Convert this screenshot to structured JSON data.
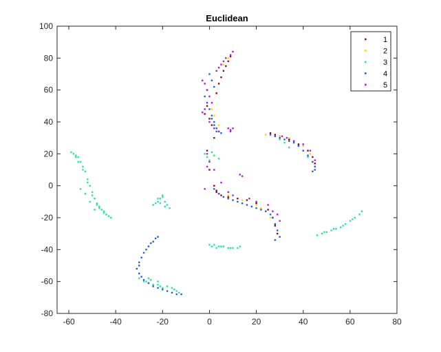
{
  "chart_data": {
    "type": "scatter",
    "title": "Euclidean",
    "xlabel": "",
    "ylabel": "",
    "xlim": [
      -65,
      80
    ],
    "ylim": [
      -80,
      100
    ],
    "xticks": [
      -60,
      -40,
      -20,
      0,
      20,
      40,
      60,
      80
    ],
    "yticks": [
      -80,
      -60,
      -40,
      -20,
      0,
      20,
      40,
      60,
      80,
      100
    ],
    "grid": false,
    "legend_position": "top-right",
    "series": [
      {
        "name": "1",
        "color": "#8b0a1a",
        "x": [
          3,
          4,
          5,
          6,
          7,
          8,
          9,
          -1,
          -2,
          0,
          1,
          2,
          3,
          -1,
          0,
          2,
          3,
          4,
          5,
          8,
          12,
          16,
          20,
          25,
          27,
          28,
          29,
          26,
          28,
          30,
          34,
          38,
          42,
          44,
          45
        ],
        "y": [
          58,
          64,
          68,
          72,
          75,
          78,
          81,
          50,
          45,
          42,
          38,
          30,
          -4,
          22,
          10,
          0,
          -3,
          -5,
          -6,
          -7,
          -8,
          -9,
          -11,
          -15,
          -20,
          -25,
          -30,
          33,
          32,
          31,
          29,
          26,
          22,
          18,
          14
        ]
      },
      {
        "name": "2",
        "color": "#ffd700",
        "x": [
          6,
          8,
          10,
          1,
          2,
          4,
          8,
          14,
          20,
          22,
          26,
          24,
          30,
          34,
          36,
          40,
          43,
          45
        ],
        "y": [
          76,
          80,
          84,
          48,
          44,
          38,
          -6,
          -9,
          -12,
          -14,
          -20,
          32,
          31,
          30,
          28,
          25,
          20,
          12
        ]
      },
      {
        "name": "3",
        "color": "#1ee8a0",
        "x": [
          -59,
          -58,
          -57,
          -56,
          -55,
          -54,
          -53,
          -52,
          -51,
          -50,
          -49,
          -48,
          -47,
          -46,
          -45,
          -44,
          -43,
          -42,
          -56,
          -57,
          -54,
          -52,
          -50,
          -48,
          -47,
          -45,
          -55,
          -53,
          -51,
          -49,
          -24,
          -23,
          -22,
          -21,
          -20,
          -19,
          -18,
          -17,
          -22,
          -20,
          -19,
          -21,
          -30,
          -28,
          -26,
          -24,
          -22,
          -21,
          -20,
          -18,
          -16,
          -15,
          -14,
          -13,
          -26,
          -27,
          -25,
          -22,
          0,
          2,
          4,
          6,
          8,
          10,
          12,
          13,
          1,
          3,
          5,
          9,
          46,
          48,
          50,
          52,
          54,
          56,
          58,
          60,
          62,
          64,
          65,
          49,
          53,
          57,
          61,
          -2,
          -1,
          0,
          1,
          2,
          4,
          36,
          38,
          40,
          42,
          44,
          30,
          32,
          34
        ],
        "y": [
          21,
          20,
          19,
          18,
          15,
          12,
          9,
          4,
          0,
          -4,
          -8,
          -11,
          -13,
          -15,
          -16,
          -18,
          -19,
          -20,
          15,
          18,
          10,
          2,
          -6,
          -12,
          -14,
          -17,
          -2,
          -5,
          -10,
          -15,
          -12,
          -11,
          -10,
          -8,
          -6,
          -10,
          -12,
          -14,
          -8,
          -7,
          -13,
          -11,
          -58,
          -60,
          -61,
          -62,
          -62,
          -63,
          -64,
          -63,
          -64,
          -65,
          -66,
          -67,
          -58,
          -60,
          -59,
          -60,
          -37,
          -37,
          -38,
          -38,
          -39,
          -39,
          -39,
          -38,
          -38,
          -39,
          -38,
          -39,
          -31,
          -30,
          -29,
          -28,
          -27,
          -26,
          -24,
          -22,
          -20,
          -18,
          -16,
          -29,
          -27,
          -25,
          -21,
          20,
          18,
          16,
          21,
          19,
          17,
          28,
          25,
          22,
          18,
          15,
          29,
          27,
          24
        ]
      },
      {
        "name": "4",
        "color": "#1a5ee0",
        "x": [
          -30,
          -29,
          -28,
          -27,
          -26,
          -25,
          -24,
          -23,
          -22,
          -30,
          -31,
          -30,
          -29,
          -28,
          -26,
          -24,
          -22,
          -20,
          -18,
          -16,
          -14,
          -12,
          -1,
          0,
          1,
          2,
          3,
          2,
          1,
          0,
          -1,
          -2,
          2,
          4,
          6,
          8,
          10,
          12,
          14,
          16,
          18,
          20,
          22,
          24,
          26,
          27,
          28,
          29,
          30,
          28,
          2,
          3,
          4,
          5,
          1,
          26,
          28,
          30,
          32,
          34,
          36,
          38,
          40,
          42,
          44,
          45,
          45,
          44
        ],
        "y": [
          -48,
          -45,
          -42,
          -40,
          -38,
          -36,
          -35,
          -33,
          -32,
          -50,
          -52,
          -55,
          -57,
          -59,
          -61,
          -63,
          -64,
          -65,
          -66,
          -67,
          -68,
          -68,
          52,
          48,
          42,
          38,
          34,
          62,
          66,
          70,
          60,
          56,
          -2,
          -5,
          -7,
          -8,
          -9,
          -10,
          -11,
          -12,
          -13,
          -14,
          -15,
          -16,
          -18,
          -20,
          -24,
          -28,
          -32,
          -34,
          40,
          36,
          34,
          33,
          44,
          32,
          31,
          30,
          29,
          28,
          27,
          25,
          22,
          19,
          15,
          12,
          10,
          9
        ]
      },
      {
        "name": "5",
        "color": "#b517e0",
        "x": [
          -3,
          -2,
          -1,
          0,
          1,
          3,
          4,
          5,
          6,
          7,
          9,
          10,
          -2,
          -3,
          0,
          2,
          4,
          8,
          9,
          10,
          9,
          -1,
          0,
          2,
          5,
          8,
          10,
          13,
          14,
          17,
          20,
          25,
          27,
          29,
          30,
          31,
          33,
          36,
          40,
          43,
          45,
          -2,
          -1
        ],
        "y": [
          66,
          64,
          60,
          56,
          52,
          72,
          74,
          76,
          78,
          80,
          82,
          84,
          48,
          46,
          40,
          36,
          34,
          36,
          35,
          36,
          34,
          20,
          15,
          10,
          2,
          -4,
          -6,
          7,
          6,
          -8,
          -10,
          -12,
          -16,
          -18,
          -22,
          31,
          30,
          28,
          26,
          22,
          16,
          -2,
          12
        ]
      }
    ]
  }
}
